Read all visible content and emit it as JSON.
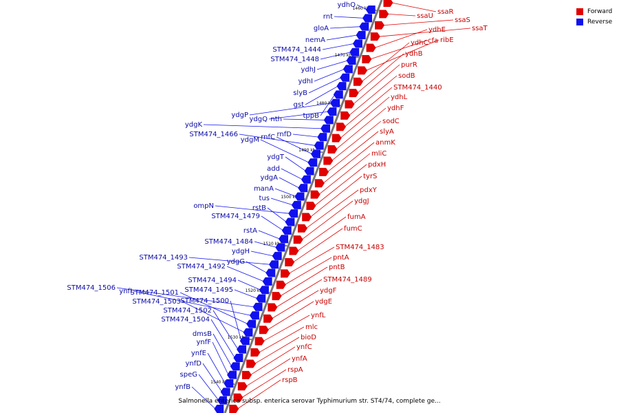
{
  "caption": "Salmonella enterica subsp. enterica serovar Typhimurium str. ST4/74, complete ge...",
  "legend": [
    {
      "label": "Forward",
      "color": "#e10000"
    },
    {
      "label": "Reverse",
      "color": "#1010ee"
    }
  ],
  "colors": {
    "forward": "#e10000",
    "reverse": "#1010ee",
    "forward_label": "#c80000",
    "reverse_label": "#0b0ba6",
    "axis": "#777777"
  },
  "ticks": [
    {
      "label": "1460 kbp",
      "kbp": 1460
    },
    {
      "label": "1470 kbp",
      "kbp": 1470
    },
    {
      "label": "1480 kbp",
      "kbp": 1480
    },
    {
      "label": "1490 kbp",
      "kbp": 1490
    },
    {
      "label": "1500 kbp",
      "kbp": 1500
    },
    {
      "label": "1510 kbp",
      "kbp": 1510
    },
    {
      "label": "1520 kbp",
      "kbp": 1520
    },
    {
      "label": "1530 kbp",
      "kbp": 1530
    },
    {
      "label": "1540 kbp",
      "kbp": 1540
    }
  ],
  "reverse_genes": [
    "ydhO",
    "rnt",
    "gloA",
    "nemA",
    "STM474_1444",
    "STM474_1448",
    "ydhJ",
    "ydhI",
    "slyB",
    "gst",
    "tppB",
    "ydgP",
    "ydgQ",
    "nth",
    "ydgK",
    "rnfD",
    "STM474_1466",
    "rnfC",
    "ydgM",
    "ydgT",
    "add",
    "ydgA",
    "manA",
    "tus",
    "ompN",
    "rstB",
    "STM474_1479",
    "rstA",
    "STM474_1484",
    "ydgH",
    "STM474_1493",
    "ydgG",
    "STM474_1492",
    "STM474_1494",
    "STM474_1495",
    "STM474_1506",
    "ynfI",
    "STM474_1501",
    "STM474_1503",
    "STM474_1500",
    "STM474_1502",
    "STM474_1504",
    "dmsB",
    "ynfF",
    "ynfE",
    "ynfD",
    "speG",
    "ynfB"
  ],
  "forward_genes": [
    "ssaR",
    "ssaU",
    "ssaS",
    "ssaT",
    "ydhE",
    "cfa",
    "ribE",
    "ydhC",
    "ydhB",
    "purR",
    "sodB",
    "STM474_1440",
    "ydhL",
    "ydhF",
    "sodC",
    "slyA",
    "anmK",
    "mliC",
    "pdxH",
    "tyrS",
    "pdxY",
    "ydgJ",
    "fumA",
    "fumC",
    "STM474_1483",
    "pntA",
    "pntB",
    "STM474_1489",
    "ydgF",
    "ydgE",
    "ynfL",
    "mlc",
    "bioD",
    "ynfC",
    "ynfA",
    "rspA",
    "rspB"
  ]
}
